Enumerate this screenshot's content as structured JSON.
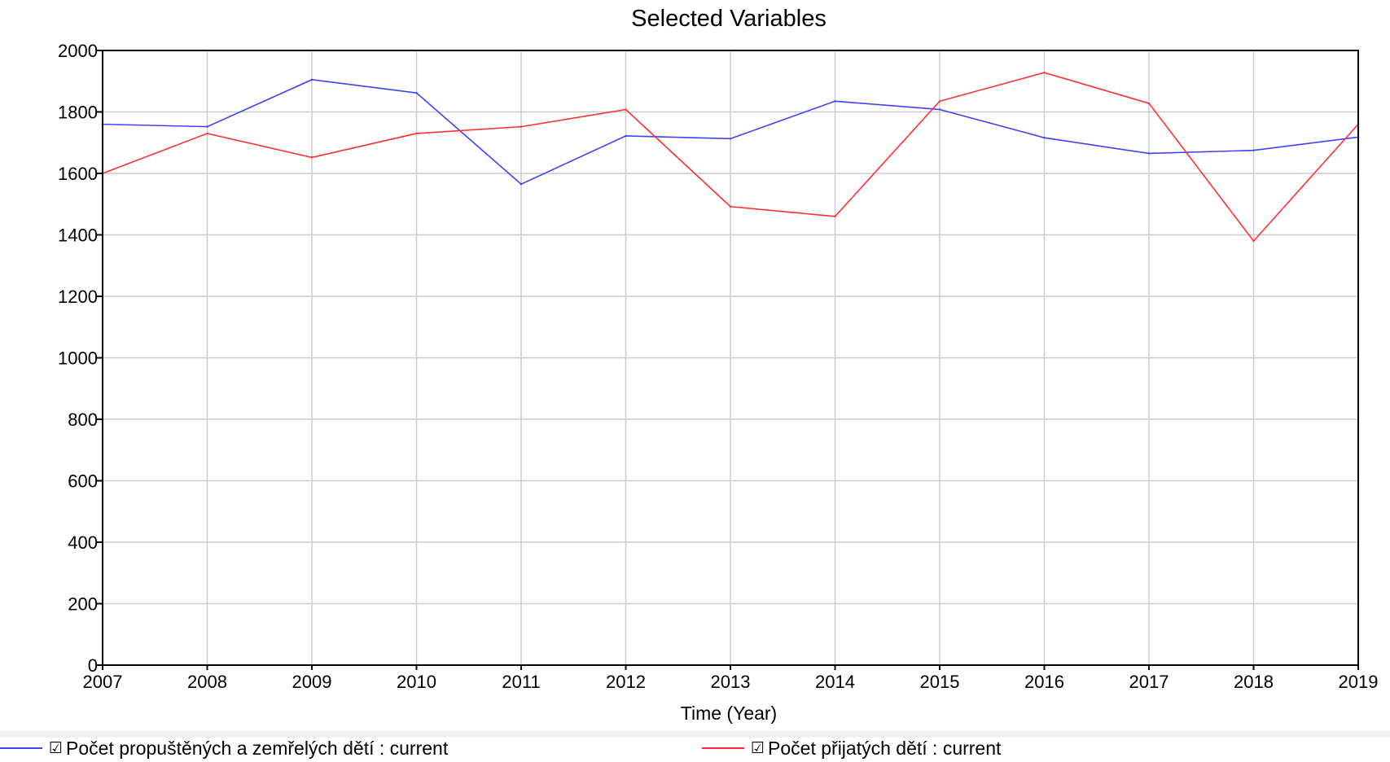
{
  "chart_data": {
    "type": "line",
    "title": "Selected Variables",
    "xlabel": "Time (Year)",
    "ylabel": "",
    "x": [
      2007,
      2008,
      2009,
      2010,
      2011,
      2012,
      2013,
      2014,
      2015,
      2016,
      2017,
      2018,
      2019
    ],
    "xlim": [
      2007,
      2019
    ],
    "ylim": [
      0,
      2000
    ],
    "yticks": [
      0,
      200,
      400,
      600,
      800,
      1000,
      1200,
      1400,
      1600,
      1800,
      2000
    ],
    "grid": true,
    "legend_position": "bottom",
    "series": [
      {
        "name": "Počet propuštěných a zemřelých dětí : current",
        "color": "#4040ff",
        "values": [
          1760,
          1752,
          1905,
          1862,
          1565,
          1722,
          1713,
          1835,
          1808,
          1716,
          1665,
          1675,
          1718
        ]
      },
      {
        "name": "Počet přijatých dětí : current",
        "color": "#ff3030",
        "values": [
          1600,
          1730,
          1652,
          1730,
          1752,
          1808,
          1492,
          1460,
          1835,
          1928,
          1828,
          1380,
          1760
        ]
      }
    ]
  },
  "legend": {
    "checkbox_glyph": "☑",
    "items": [
      {
        "label": "Počet propuštěných a zemřelých dětí : current",
        "color": "#4040ff"
      },
      {
        "label": "Počet přijatých dětí : current",
        "color": "#ff3030"
      }
    ]
  }
}
